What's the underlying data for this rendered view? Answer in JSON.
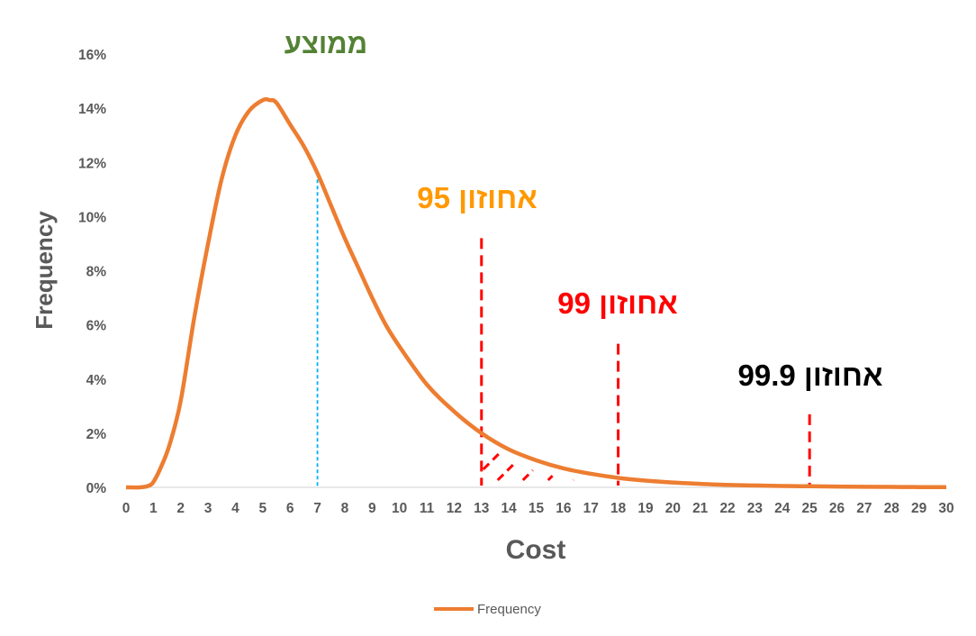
{
  "chart_data": {
    "type": "line",
    "xlabel": "Cost",
    "ylabel": "Frequency",
    "xlim": [
      0,
      30
    ],
    "ylim": [
      0,
      16
    ],
    "x_ticks": [
      "0",
      "1",
      "2",
      "3",
      "4",
      "5",
      "6",
      "7",
      "8",
      "9",
      "10",
      "11",
      "12",
      "13",
      "14",
      "15",
      "16",
      "17",
      "18",
      "19",
      "20",
      "21",
      "22",
      "23",
      "24",
      "25",
      "26",
      "27",
      "28",
      "29",
      "30"
    ],
    "y_ticks": [
      "0%",
      "2%",
      "4%",
      "6%",
      "8%",
      "10%",
      "12%",
      "14%",
      "16%"
    ],
    "grid": false,
    "legend_position": "bottom",
    "series": [
      {
        "name": "Frequency",
        "color": "#ED7D31",
        "x": [
          0,
          0.5,
          0.8,
          1,
          1.3,
          1.6,
          2,
          2.5,
          3,
          3.5,
          4,
          4.5,
          5,
          5.25,
          5.5,
          6,
          6.5,
          7,
          7.5,
          8,
          8.5,
          9,
          9.5,
          10,
          11,
          12,
          13,
          14,
          15,
          16,
          17,
          18,
          19,
          20,
          21,
          22,
          23,
          24,
          25,
          26,
          27,
          28,
          29,
          30
        ],
        "values": [
          0,
          0,
          0.05,
          0.2,
          0.8,
          1.6,
          3.2,
          6.3,
          9.0,
          11.4,
          13.0,
          13.9,
          14.3,
          14.3,
          14.2,
          13.4,
          12.6,
          11.6,
          10.4,
          9.2,
          8.1,
          7.0,
          6.0,
          5.2,
          3.8,
          2.8,
          2.0,
          1.4,
          1.0,
          0.7,
          0.5,
          0.35,
          0.25,
          0.18,
          0.13,
          0.09,
          0.07,
          0.05,
          0.04,
          0.03,
          0.02,
          0.015,
          0.01,
          0.01
        ]
      }
    ],
    "annotations": [
      {
        "id": "mean",
        "text": "ממוצע",
        "x": 7,
        "color": "#548235",
        "line_color": "#00B0F0",
        "line_style": "dotted"
      },
      {
        "id": "p95",
        "text": "אחוזון 95",
        "x": 13,
        "color": "#FF9900",
        "line_color": "#FF0000",
        "line_top": 9.2
      },
      {
        "id": "p99",
        "text": "אחוזון 99",
        "x": 18,
        "color": "#FF0000",
        "line_color": "#FF0000",
        "line_top": 5.3
      },
      {
        "id": "p999",
        "text": "אחוזון 99.9",
        "x": 25,
        "color": "#000000",
        "line_color": "#FF0000",
        "line_top": 2.7
      }
    ],
    "hatch_region": {
      "x_from": 13,
      "x_to": 18,
      "color": "#FF0000"
    }
  }
}
